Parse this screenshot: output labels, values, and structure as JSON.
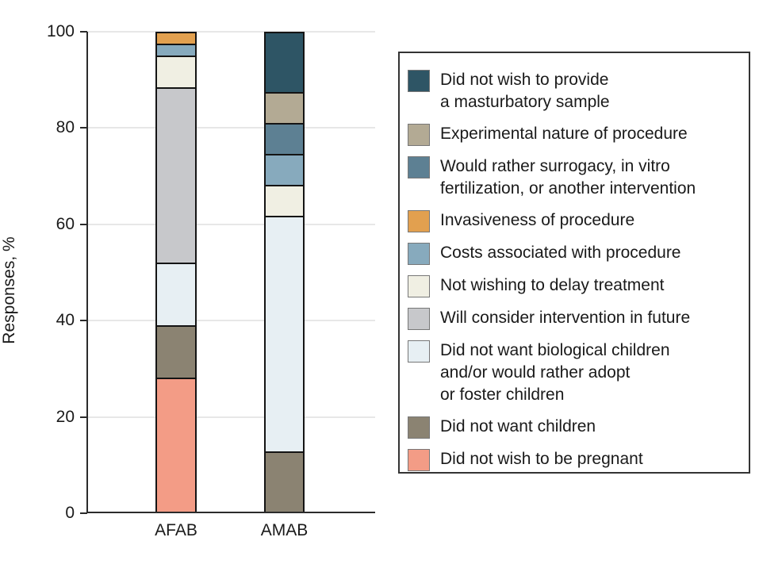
{
  "figure": {
    "background": "#ffffff"
  },
  "y_axis": {
    "title": "Responses, %",
    "tick_labels": [
      "0",
      "20",
      "40",
      "60",
      "80",
      "100"
    ]
  },
  "x_axis": {
    "categories": [
      "AFAB",
      "AMAB"
    ]
  },
  "chart_data": {
    "type": "bar",
    "stacked": true,
    "title": "",
    "xlabel": "",
    "ylabel": "Responses, %",
    "ylim": [
      0,
      100
    ],
    "yticks": [
      0,
      20,
      40,
      60,
      80,
      100
    ],
    "grid": true,
    "legend_position": "right",
    "stack_note": "series listed top-of-stack first; values are percent of responses per assigned-sex group",
    "categories": [
      "AFAB",
      "AMAB"
    ],
    "series": [
      {
        "name": "Did not wish to provide a masturbatory sample",
        "label_lines": [
          "Did not wish to provide",
          "a masturbatory sample"
        ],
        "color": "#2E5565",
        "values": [
          0,
          12.5
        ]
      },
      {
        "name": "Experimental nature of procedure",
        "label_lines": [
          "Experimental nature of procedure"
        ],
        "color": "#B3AA94",
        "values": [
          0,
          6.25
        ]
      },
      {
        "name": "Would rather surrogacy, in vitro fertilization, or another intervention",
        "label_lines": [
          "Would rather surrogacy, in vitro",
          "fertilization, or another intervention"
        ],
        "color": "#5D8093",
        "values": [
          0,
          6.25
        ]
      },
      {
        "name": "Invasiveness of procedure",
        "label_lines": [
          "Invasiveness of procedure"
        ],
        "color": "#E2A04F",
        "values": [
          2.2,
          0
        ]
      },
      {
        "name": "Costs associated with procedure",
        "label_lines": [
          "Costs associated with procedure"
        ],
        "color": "#87AABD",
        "values": [
          2.2,
          6.25
        ]
      },
      {
        "name": "Not wishing to delay treatment",
        "label_lines": [
          "Not wishing to delay treatment"
        ],
        "color": "#F0EFE3",
        "values": [
          6.5,
          6.25
        ]
      },
      {
        "name": "Will consider intervention in future",
        "label_lines": [
          "Will consider intervention in future"
        ],
        "color": "#C7C8CB",
        "values": [
          37.0,
          0
        ]
      },
      {
        "name": "Did not want biological children and/or would rather adopt or foster children",
        "label_lines": [
          "Did not want biological children",
          "and/or would rather adopt",
          "or foster children"
        ],
        "color": "#E7EFF3",
        "values": [
          13.0,
          50
        ]
      },
      {
        "name": "Did not want children",
        "label_lines": [
          "Did not want children"
        ],
        "color": "#8B8372",
        "values": [
          10.9,
          12.5
        ]
      },
      {
        "name": "Did not wish to be pregnant",
        "label_lines": [
          "Did not wish to be pregnant"
        ],
        "color": "#F39C86",
        "values": [
          28.3,
          0
        ]
      }
    ]
  }
}
